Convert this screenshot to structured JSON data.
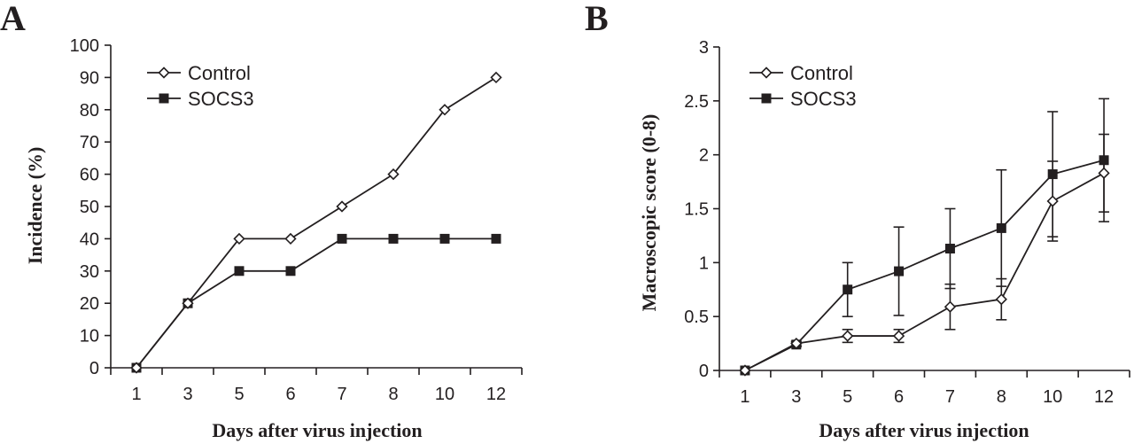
{
  "chart_data": [
    {
      "type": "line",
      "panel": "A",
      "categories": [
        "1",
        "3",
        "5",
        "6",
        "7",
        "8",
        "10",
        "12"
      ],
      "xlabel": "Days after virus injection",
      "ylabel": "Incidence (%)",
      "ylim": [
        0,
        100
      ],
      "yticks": [
        0,
        10,
        20,
        30,
        40,
        50,
        60,
        70,
        80,
        90,
        100
      ],
      "legend_position": "top-left",
      "grid": false,
      "series": [
        {
          "name": "Control",
          "marker": "open-diamond",
          "values": [
            0,
            20,
            40,
            40,
            50,
            60,
            80,
            90
          ]
        },
        {
          "name": "SOCS3",
          "marker": "filled-square",
          "values": [
            0,
            20,
            30,
            30,
            40,
            40,
            40,
            40
          ]
        }
      ]
    },
    {
      "type": "line",
      "panel": "B",
      "categories": [
        "1",
        "3",
        "5",
        "6",
        "7",
        "8",
        "10",
        "12"
      ],
      "xlabel": "Days after virus injection",
      "ylabel": "Macroscopic score (0-8)",
      "ylim": [
        0,
        3
      ],
      "yticks": [
        0,
        0.5,
        1,
        1.5,
        2,
        2.5,
        3
      ],
      "ytick_labels": [
        "0",
        "0.5",
        "1",
        "1.5",
        "2",
        "2.5",
        "3"
      ],
      "legend_position": "top-left",
      "grid": false,
      "series": [
        {
          "name": "Control",
          "marker": "open-diamond",
          "values": [
            0,
            0.25,
            0.32,
            0.32,
            0.59,
            0.66,
            1.57,
            1.83
          ],
          "error": [
            0,
            0.02,
            0.06,
            0.06,
            0.21,
            0.19,
            0.37,
            0.36
          ]
        },
        {
          "name": "SOCS3",
          "marker": "filled-square",
          "values": [
            0,
            0.24,
            0.75,
            0.92,
            1.13,
            1.32,
            1.82,
            1.95
          ],
          "error": [
            0,
            0.02,
            0.25,
            0.41,
            0.37,
            0.54,
            0.58,
            0.57
          ]
        }
      ]
    }
  ]
}
